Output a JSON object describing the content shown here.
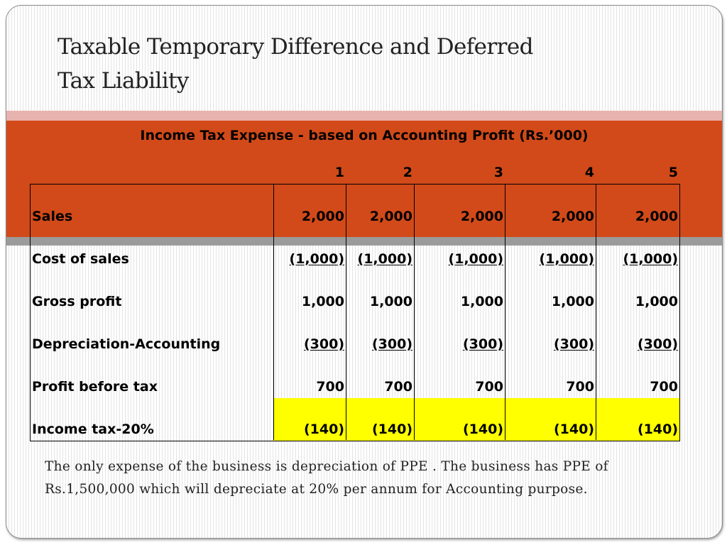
{
  "slide": {
    "title_line1": "Taxable Temporary Difference and Deferred",
    "title_line2": "Tax Liability"
  },
  "table": {
    "heading": "Income Tax Expense - based on Accounting Profit (Rs.’000)",
    "years": [
      "1",
      "2",
      "3",
      "4",
      "5"
    ],
    "rows": [
      {
        "label": "Sales",
        "values": [
          "2,000",
          "2,000",
          "2,000",
          "2,000",
          "2,000"
        ]
      },
      {
        "label": "Cost of sales",
        "values": [
          "(1,000)",
          "(1,000)",
          "(1,000)",
          "(1,000)",
          "(1,000)"
        ]
      },
      {
        "label": "Gross profit",
        "values": [
          "1,000",
          "1,000",
          "1,000",
          "1,000",
          "1,000"
        ]
      },
      {
        "label": "Depreciation-Accounting",
        "values": [
          "(300)",
          "(300)",
          "(300)",
          "(300)",
          "(300)"
        ]
      },
      {
        "label": "Profit before tax",
        "values": [
          "700",
          "700",
          "700",
          "700",
          "700"
        ]
      },
      {
        "label": "Income tax-20%",
        "values": [
          "(140)",
          "(140)",
          "(140)",
          "(140)",
          "(140)"
        ]
      }
    ]
  },
  "note": {
    "text": "The only expense of the business is depreciation of PPE . The business has PPE of Rs.1,500,000 which will depreciate at 20% per annum for Accounting purpose."
  },
  "colors": {
    "header_band": "#d24a1a",
    "accent_pink": "#e8b3ae",
    "accent_gray": "#9b9b9b",
    "highlight": "#ffff00"
  }
}
